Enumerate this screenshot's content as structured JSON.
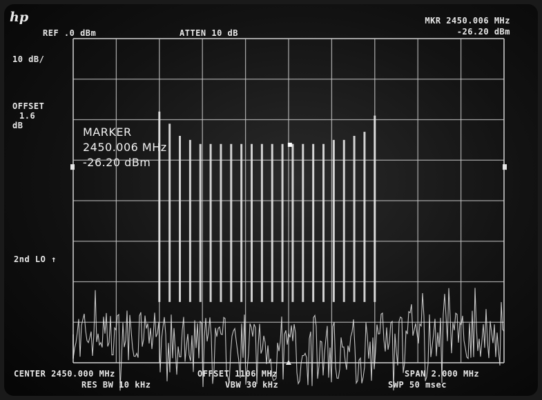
{
  "header": {
    "logo": "hp",
    "ref": "REF .0 dBm",
    "atten": "ATTEN 10 dB",
    "mkr_freq": "MKR 2450.006 MHz",
    "mkr_level": "-26.20 dBm"
  },
  "left_annotations": {
    "scale": "10 dB/",
    "offset_label": "OFFSET",
    "offset_value": "1.6",
    "offset_unit": "dB",
    "second_lo": "2nd LO ↑"
  },
  "marker_readout": {
    "title": "MARKER",
    "freq": "2450.006 MHz",
    "level": "-26.20 dBm"
  },
  "footer": {
    "center": "CENTER 2450.000 MHz",
    "res_bw": "RES BW 10 kHz",
    "offset": "OFFSET 1106 MHz",
    "vbw": "VBW 30 kHz",
    "span": "SPAN 2.000 MHz",
    "sweep": "SWP 50 msec"
  },
  "colors": {
    "trace": "#e6e6e6",
    "graticule": "#c8c8c8",
    "background": "#121212"
  },
  "chart_data": {
    "type": "line",
    "center_mhz": 2450.0,
    "span_mhz": 2.0,
    "reference_level_dbm": 0,
    "scale_db_per_div": 10,
    "divisions_x": 10,
    "divisions_y": 8,
    "noise_floor_dbm": -73,
    "band_edges_mhz": [
      2449.4,
      2450.4
    ],
    "marker": {
      "freq_mhz": 2450.006,
      "level_dbm": -26.2
    },
    "spur_peaks_dbm": [
      -18,
      -21,
      -24,
      -25,
      -26,
      -26,
      -26,
      -26,
      -26,
      -26,
      -26,
      -26,
      -26,
      -26,
      -26,
      -26,
      -26,
      -25,
      -25,
      -24,
      -23,
      -19
    ]
  }
}
